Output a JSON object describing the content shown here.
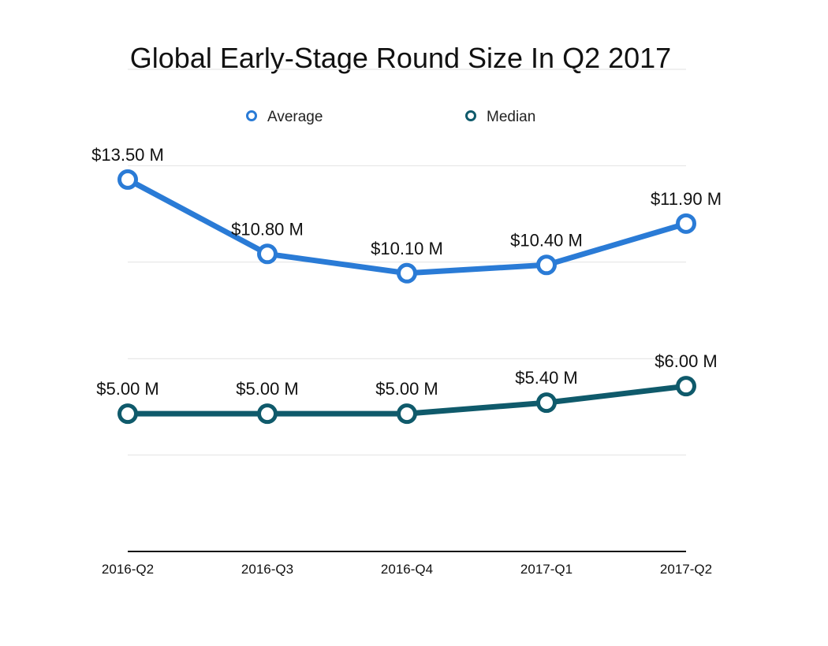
{
  "chart_data": {
    "type": "line",
    "title": "Global Early-Stage Round Size In Q2 2017",
    "categories": [
      "2016-Q2",
      "2016-Q3",
      "2016-Q4",
      "2017-Q1",
      "2017-Q2"
    ],
    "series": [
      {
        "name": "Average",
        "color": "#2a7bd6",
        "values": [
          13.5,
          10.8,
          10.1,
          10.4,
          11.9
        ],
        "labels": [
          "$13.50 M",
          "$10.80 M",
          "$10.10 M",
          "$10.40 M",
          "$11.90 M"
        ]
      },
      {
        "name": "Median",
        "color": "#0f5a6b",
        "values": [
          5.0,
          5.0,
          5.0,
          5.4,
          6.0
        ],
        "labels": [
          "$5.00 M",
          "$5.00 M",
          "$5.00 M",
          "$5.40 M",
          "$6.00 M"
        ]
      }
    ],
    "ylim": [
      0,
      17.5
    ],
    "grid": true,
    "legend_position": "top-center"
  }
}
